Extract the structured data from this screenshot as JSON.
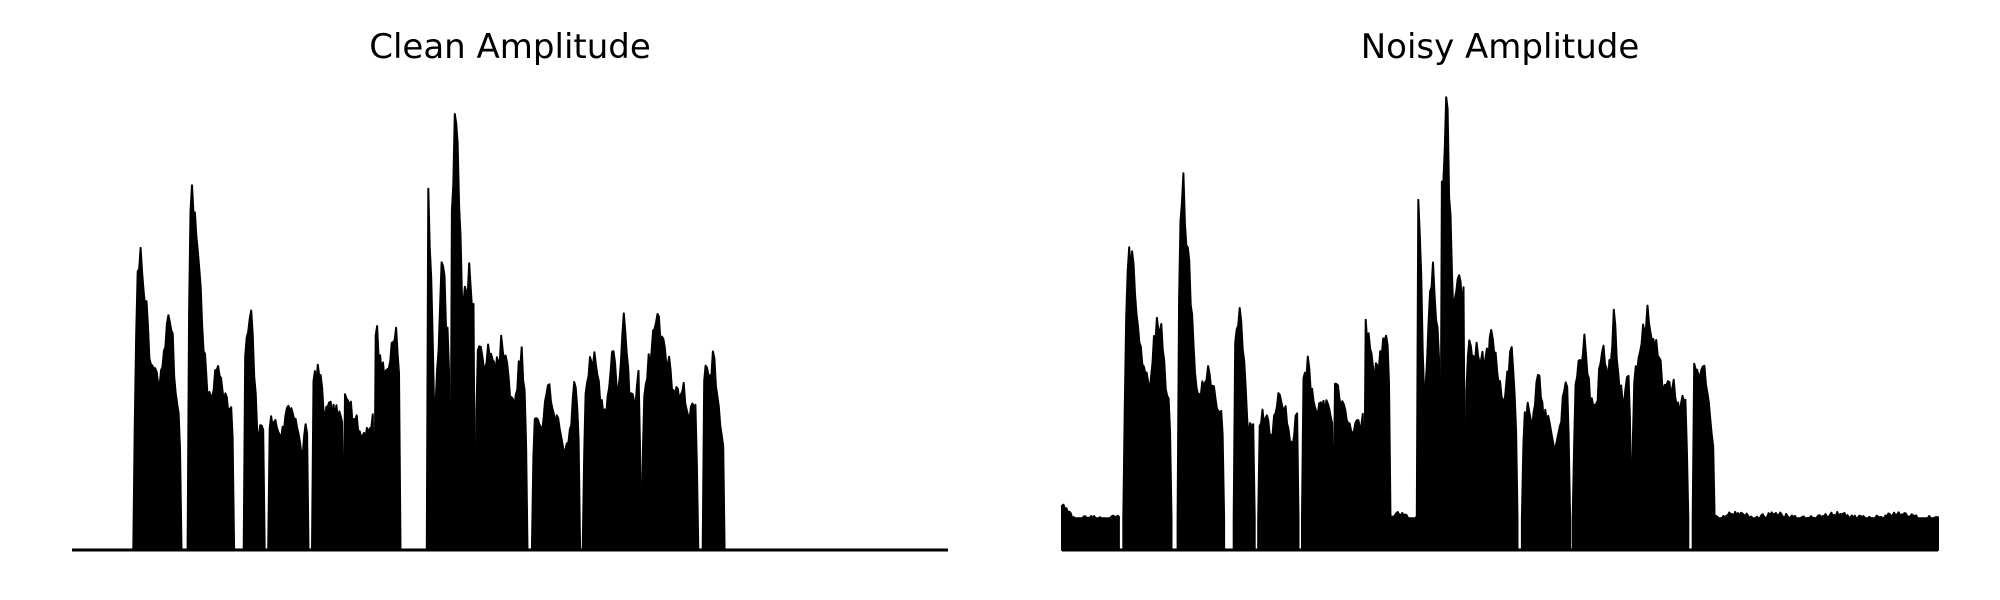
{
  "chart_data": [
    {
      "type": "area",
      "title": "Clean Amplitude",
      "xlabel": "",
      "ylabel": "",
      "grid": false,
      "axes_visible": false,
      "line_color": "#000000",
      "fill_color": "#000000",
      "xlim": [
        0,
        100
      ],
      "ylim": [
        0,
        1.0
      ],
      "noise_floor": 0.0,
      "segments": [
        {
          "start": 0,
          "end": 6.5,
          "level": 0,
          "profile": []
        },
        {
          "start": 7.0,
          "end": 12.5,
          "level": 0.2,
          "profile": [
            0.24,
            0.66,
            0.6,
            0.42,
            0.39,
            0.36,
            0.47,
            0.52,
            0.33,
            0.3
          ]
        },
        {
          "start": 13.2,
          "end": 18.5,
          "level": 0.25,
          "profile": [
            0.68,
            0.78,
            0.67,
            0.47,
            0.32,
            0.36,
            0.41,
            0.35,
            0.31,
            0.3
          ]
        },
        {
          "start": 19.6,
          "end": 22.0,
          "level": 0.2,
          "profile": [
            0.39,
            0.53,
            0.25,
            0.28
          ]
        },
        {
          "start": 22.4,
          "end": 27.0,
          "level": 0.22,
          "profile": [
            0.29,
            0.28,
            0.25,
            0.32,
            0.3,
            0.2,
            0.33
          ]
        },
        {
          "start": 27.4,
          "end": 31.0,
          "level": 0.2,
          "profile": [
            0.36,
            0.4,
            0.3,
            0.31,
            0.3,
            0.27
          ]
        },
        {
          "start": 31.0,
          "end": 34.5,
          "level": 0.2,
          "profile": [
            0.36,
            0.35,
            0.3,
            0.28,
            0.25,
            0.26,
            0.27,
            0.3
          ]
        },
        {
          "start": 34.5,
          "end": 37.5,
          "level": 0.25,
          "profile": [
            0.52,
            0.43,
            0.38,
            0.42,
            0.5,
            0.34
          ]
        },
        {
          "start": 37.5,
          "end": 40.5,
          "level": 0,
          "profile": []
        },
        {
          "start": 40.5,
          "end": 43.2,
          "level": 0.2,
          "profile": [
            0.94,
            0.28,
            0.65,
            0.35
          ]
        },
        {
          "start": 43.2,
          "end": 46.0,
          "level": 0.25,
          "profile": [
            0.7,
            1.0,
            0.52,
            0.61,
            0.52
          ]
        },
        {
          "start": 46.0,
          "end": 52.0,
          "level": 0.25,
          "profile": [
            0.45,
            0.42,
            0.43,
            0.4,
            0.45,
            0.39,
            0.3,
            0.44,
            0.28
          ]
        },
        {
          "start": 52.5,
          "end": 58.0,
          "level": 0.18,
          "profile": [
            0.25,
            0.3,
            0.26,
            0.38,
            0.29,
            0.28,
            0.22,
            0.25,
            0.36,
            0.3
          ]
        },
        {
          "start": 58.3,
          "end": 65.0,
          "level": 0.22,
          "profile": [
            0.3,
            0.4,
            0.44,
            0.33,
            0.3,
            0.44,
            0.35,
            0.5,
            0.34,
            0.33,
            0.42
          ]
        },
        {
          "start": 65.0,
          "end": 71.5,
          "level": 0.22,
          "profile": [
            0.33,
            0.38,
            0.45,
            0.52,
            0.46,
            0.43,
            0.36,
            0.34,
            0.36,
            0.3,
            0.32,
            0.28
          ]
        },
        {
          "start": 72.0,
          "end": 74.5,
          "level": 0.15,
          "profile": [
            0.4,
            0.38,
            0.42,
            0.3,
            0.2
          ]
        },
        {
          "start": 74.5,
          "end": 100,
          "level": 0,
          "profile": []
        }
      ]
    },
    {
      "type": "area",
      "title": "Noisy Amplitude",
      "xlabel": "",
      "ylabel": "",
      "grid": false,
      "axes_visible": false,
      "line_color": "#000000",
      "fill_color": "#000000",
      "xlim": [
        0,
        100
      ],
      "ylim": [
        0,
        1.0
      ],
      "noise_floor": 0.07,
      "segments": [
        {
          "start": 0,
          "end": 6.5,
          "level": 0.07,
          "profile": [
            0.1,
            0.07,
            0.07,
            0.07,
            0.07,
            0.07
          ]
        },
        {
          "start": 7.0,
          "end": 12.5,
          "level": 0.2,
          "profile": [
            0.27,
            0.68,
            0.6,
            0.44,
            0.4,
            0.36,
            0.48,
            0.51,
            0.33,
            0.3
          ]
        },
        {
          "start": 13.2,
          "end": 18.5,
          "level": 0.25,
          "profile": [
            0.7,
            0.8,
            0.67,
            0.46,
            0.32,
            0.36,
            0.4,
            0.35,
            0.31,
            0.31
          ]
        },
        {
          "start": 19.6,
          "end": 22.0,
          "level": 0.2,
          "profile": [
            0.41,
            0.54,
            0.26,
            0.29
          ]
        },
        {
          "start": 22.4,
          "end": 27.0,
          "level": 0.22,
          "profile": [
            0.3,
            0.29,
            0.26,
            0.33,
            0.31,
            0.22,
            0.34
          ]
        },
        {
          "start": 27.4,
          "end": 31.0,
          "level": 0.2,
          "profile": [
            0.37,
            0.41,
            0.3,
            0.32,
            0.31,
            0.28
          ]
        },
        {
          "start": 31.0,
          "end": 34.5,
          "level": 0.2,
          "profile": [
            0.37,
            0.36,
            0.31,
            0.29,
            0.26,
            0.27,
            0.28,
            0.31
          ]
        },
        {
          "start": 34.5,
          "end": 37.5,
          "level": 0.25,
          "profile": [
            0.53,
            0.44,
            0.39,
            0.43,
            0.49,
            0.35
          ]
        },
        {
          "start": 37.5,
          "end": 40.5,
          "level": 0.07,
          "profile": [
            0.07,
            0.08,
            0.07,
            0.07
          ]
        },
        {
          "start": 40.5,
          "end": 43.2,
          "level": 0.2,
          "profile": [
            0.93,
            0.3,
            0.65,
            0.36
          ]
        },
        {
          "start": 43.2,
          "end": 46.0,
          "level": 0.25,
          "profile": [
            0.72,
            1.0,
            0.53,
            0.6,
            0.53
          ]
        },
        {
          "start": 46.0,
          "end": 52.0,
          "level": 0.25,
          "profile": [
            0.46,
            0.43,
            0.44,
            0.41,
            0.46,
            0.4,
            0.31,
            0.45,
            0.29
          ]
        },
        {
          "start": 52.5,
          "end": 58.0,
          "level": 0.18,
          "profile": [
            0.26,
            0.31,
            0.27,
            0.39,
            0.3,
            0.29,
            0.23,
            0.26,
            0.37,
            0.31
          ]
        },
        {
          "start": 58.3,
          "end": 65.0,
          "level": 0.22,
          "profile": [
            0.31,
            0.41,
            0.45,
            0.34,
            0.31,
            0.45,
            0.36,
            0.51,
            0.35,
            0.34,
            0.43
          ]
        },
        {
          "start": 65.0,
          "end": 71.5,
          "level": 0.22,
          "profile": [
            0.34,
            0.39,
            0.46,
            0.53,
            0.47,
            0.44,
            0.37,
            0.35,
            0.37,
            0.31,
            0.33,
            0.29
          ]
        },
        {
          "start": 72.0,
          "end": 74.5,
          "level": 0.15,
          "profile": [
            0.41,
            0.39,
            0.43,
            0.31,
            0.21
          ]
        },
        {
          "start": 74.5,
          "end": 100,
          "level": 0.07,
          "profile": [
            0.07,
            0.08,
            0.07,
            0.08,
            0.07,
            0.07,
            0.08,
            0.07,
            0.07,
            0.08,
            0.07,
            0.07
          ]
        }
      ]
    }
  ]
}
